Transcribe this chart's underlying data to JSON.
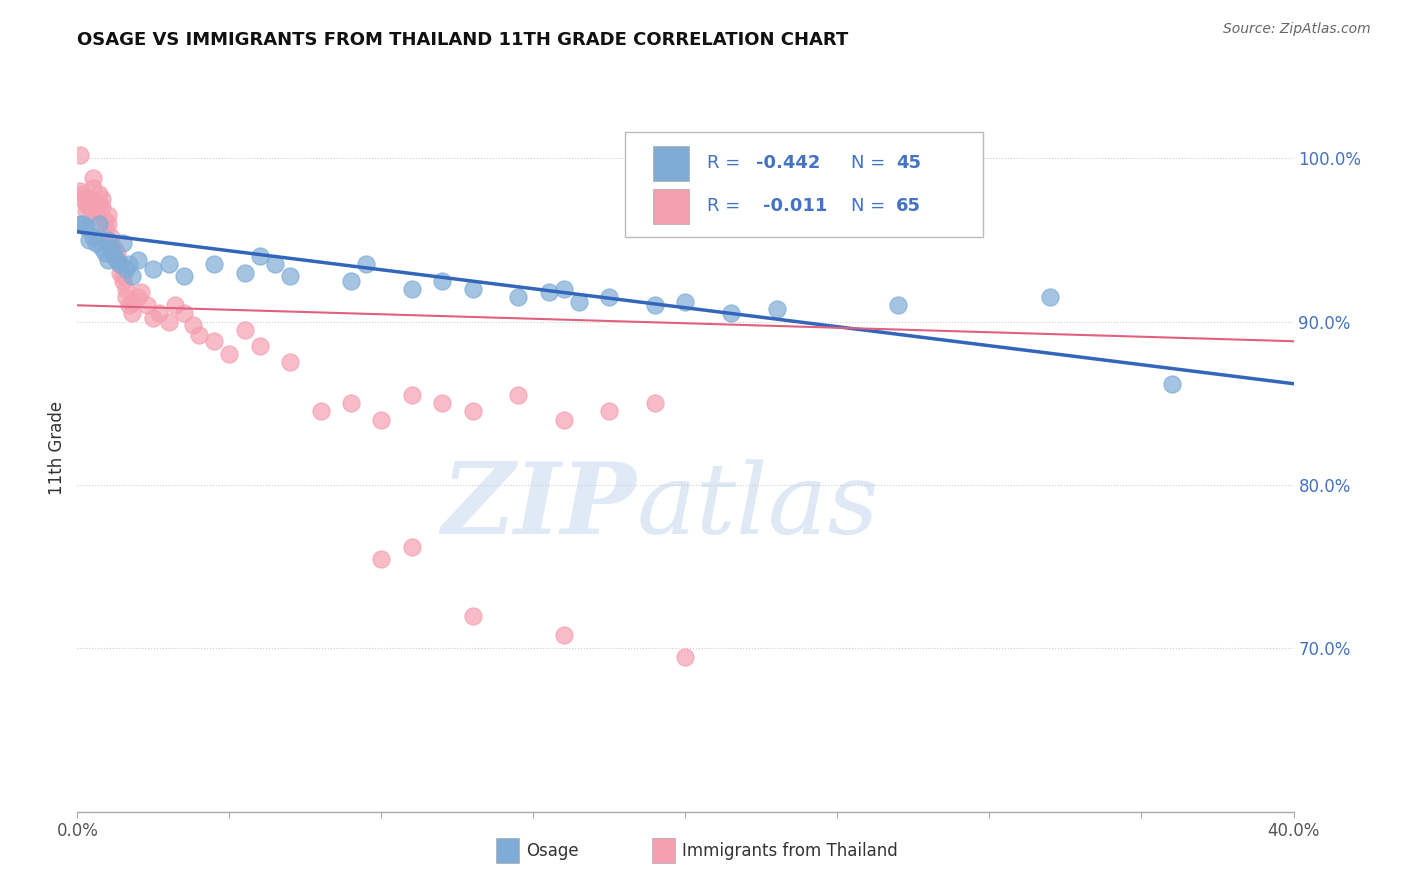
{
  "title": "OSAGE VS IMMIGRANTS FROM THAILAND 11TH GRADE CORRELATION CHART",
  "source_text": "Source: ZipAtlas.com",
  "ylabel": "11th Grade",
  "xlim": [
    0.0,
    0.4
  ],
  "ylim": [
    0.6,
    1.045
  ],
  "xtick_positions": [
    0.0,
    0.05,
    0.1,
    0.15,
    0.2,
    0.25,
    0.3,
    0.35,
    0.4
  ],
  "xticklabels": [
    "0.0%",
    "",
    "",
    "",
    "",
    "",
    "",
    "",
    "40.0%"
  ],
  "ytick_positions": [
    0.7,
    0.8,
    0.9,
    1.0
  ],
  "yticklabels": [
    "70.0%",
    "80.0%",
    "90.0%",
    "100.0%"
  ],
  "blue_color": "#7facd6",
  "pink_color": "#f4a0b0",
  "blue_line_color": "#3366bb",
  "pink_line_color": "#e06080",
  "grid_color": "#cccccc",
  "legend_text_color": "#4472c4",
  "blue_scatter_x": [
    0.001,
    0.002,
    0.003,
    0.004,
    0.005,
    0.006,
    0.007,
    0.008,
    0.009,
    0.01,
    0.01,
    0.011,
    0.012,
    0.013,
    0.014,
    0.015,
    0.016,
    0.017,
    0.018,
    0.02,
    0.025,
    0.03,
    0.035,
    0.045,
    0.055,
    0.06,
    0.065,
    0.07,
    0.09,
    0.095,
    0.11,
    0.12,
    0.13,
    0.145,
    0.155,
    0.16,
    0.165,
    0.175,
    0.19,
    0.2,
    0.215,
    0.23,
    0.27,
    0.32,
    0.36
  ],
  "blue_scatter_y": [
    0.96,
    0.96,
    0.958,
    0.95,
    0.952,
    0.948,
    0.96,
    0.945,
    0.942,
    0.95,
    0.938,
    0.945,
    0.94,
    0.938,
    0.935,
    0.948,
    0.932,
    0.935,
    0.928,
    0.938,
    0.932,
    0.935,
    0.928,
    0.935,
    0.93,
    0.94,
    0.935,
    0.928,
    0.925,
    0.935,
    0.92,
    0.925,
    0.92,
    0.915,
    0.918,
    0.92,
    0.912,
    0.915,
    0.91,
    0.912,
    0.905,
    0.908,
    0.91,
    0.915,
    0.862
  ],
  "pink_scatter_x": [
    0.001,
    0.001,
    0.002,
    0.002,
    0.003,
    0.003,
    0.004,
    0.004,
    0.005,
    0.005,
    0.006,
    0.006,
    0.007,
    0.007,
    0.008,
    0.008,
    0.009,
    0.009,
    0.01,
    0.01,
    0.011,
    0.011,
    0.012,
    0.012,
    0.013,
    0.013,
    0.014,
    0.014,
    0.015,
    0.015,
    0.016,
    0.016,
    0.017,
    0.018,
    0.018,
    0.02,
    0.021,
    0.023,
    0.025,
    0.027,
    0.03,
    0.032,
    0.035,
    0.038,
    0.04,
    0.045,
    0.05,
    0.055,
    0.06,
    0.07,
    0.08,
    0.09,
    0.1,
    0.11,
    0.12,
    0.13,
    0.145,
    0.16,
    0.175,
    0.19,
    0.1,
    0.11,
    0.13,
    0.16,
    0.2
  ],
  "pink_scatter_y": [
    0.98,
    1.002,
    0.978,
    0.975,
    0.972,
    0.968,
    0.975,
    0.97,
    0.982,
    0.988,
    0.965,
    0.968,
    0.972,
    0.978,
    0.97,
    0.975,
    0.962,
    0.958,
    0.965,
    0.96,
    0.948,
    0.952,
    0.94,
    0.945,
    0.938,
    0.942,
    0.93,
    0.935,
    0.925,
    0.928,
    0.92,
    0.915,
    0.91,
    0.912,
    0.905,
    0.915,
    0.918,
    0.91,
    0.902,
    0.905,
    0.9,
    0.91,
    0.905,
    0.898,
    0.892,
    0.888,
    0.88,
    0.895,
    0.885,
    0.875,
    0.845,
    0.85,
    0.84,
    0.855,
    0.85,
    0.845,
    0.855,
    0.84,
    0.845,
    0.85,
    0.755,
    0.762,
    0.72,
    0.708,
    0.695
  ],
  "pink_trend_x": [
    0.0,
    0.4
  ],
  "pink_trend_y": [
    0.91,
    0.888
  ],
  "blue_trend_x": [
    0.0,
    0.4
  ],
  "blue_trend_y": [
    0.955,
    0.862
  ]
}
